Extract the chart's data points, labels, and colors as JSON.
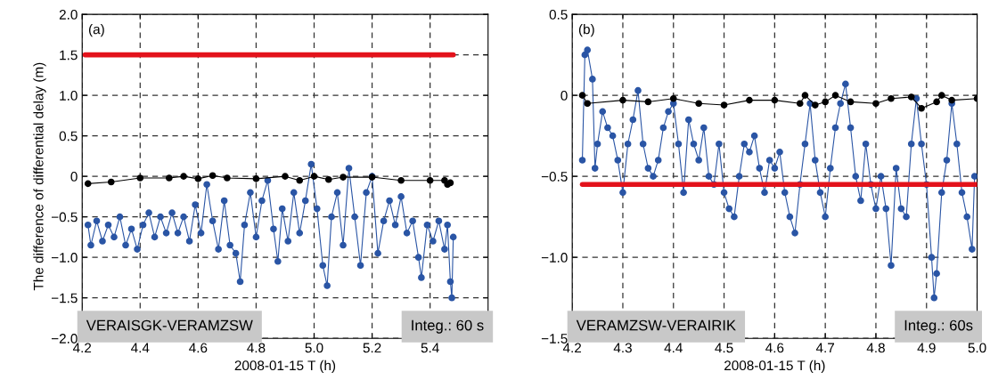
{
  "chart_data": [
    {
      "type": "line",
      "xlabel": "2008-01-15 T (h)",
      "ylabel": "The difference of differential delay (m)",
      "annotations": [
        "(a)",
        "VERAISGK-VERAMZSW",
        "Integ.: 60 s"
      ],
      "xlim": [
        4.2,
        5.6
      ],
      "xticks": [
        4.2,
        4.4,
        4.6,
        4.8,
        {
          "value": 5.0,
          "label": "5.0"
        },
        5.2,
        5.4
      ],
      "ylim": [
        -2.0,
        2.0
      ],
      "yticks": [
        {
          "value": -2.0,
          "label": "−2.0"
        },
        {
          "value": -1.5,
          "label": "−1.5"
        },
        {
          "value": -1.0,
          "label": "−1.0"
        },
        {
          "value": -0.5,
          "label": "−0.5"
        },
        0,
        0.5,
        {
          "value": 1.0,
          "label": "1.0"
        },
        1.5,
        {
          "value": 2.0,
          "label": "2.0"
        }
      ],
      "grid": true,
      "line_style": "solid",
      "series": [
        {
          "color": "#2a55a5",
          "marker": "circle",
          "x": [
            4.22,
            4.23,
            4.25,
            4.27,
            4.29,
            4.31,
            4.33,
            4.35,
            4.37,
            4.39,
            4.41,
            4.43,
            4.45,
            4.47,
            4.49,
            4.51,
            4.53,
            4.55,
            4.57,
            4.59,
            4.61,
            4.63,
            4.65,
            4.67,
            4.69,
            4.71,
            4.73,
            4.745,
            4.76,
            4.78,
            4.8,
            4.82,
            4.84,
            4.86,
            4.875,
            4.89,
            4.91,
            4.93,
            4.95,
            4.97,
            4.99,
            5.01,
            5.03,
            5.045,
            5.06,
            5.08,
            5.1,
            5.12,
            5.14,
            5.16,
            5.18,
            5.2,
            5.22,
            5.24,
            5.26,
            5.28,
            5.3,
            5.32,
            5.34,
            5.36,
            5.37,
            5.39,
            5.41,
            5.43,
            5.45,
            5.46,
            5.47,
            5.475,
            5.48
          ],
          "values": [
            -0.6,
            -0.85,
            -0.55,
            -0.8,
            -0.6,
            -0.75,
            -0.5,
            -0.85,
            -0.65,
            -0.9,
            -0.6,
            -0.45,
            -0.75,
            -0.5,
            -0.7,
            -0.45,
            -0.7,
            -0.5,
            -0.8,
            -0.35,
            -0.7,
            -0.1,
            -0.55,
            -0.9,
            -0.3,
            -0.85,
            -0.95,
            -1.3,
            -0.6,
            -0.2,
            -0.75,
            -0.3,
            -0.05,
            -0.65,
            -1.05,
            -0.4,
            -0.8,
            -0.2,
            -0.7,
            -0.3,
            0.15,
            -0.4,
            -1.1,
            -1.35,
            -0.5,
            -0.2,
            -0.85,
            0.1,
            -0.5,
            -1.1,
            -0.2,
            0.0,
            -0.95,
            -0.55,
            -0.3,
            -0.6,
            -0.25,
            -0.7,
            -0.55,
            -1.0,
            -1.25,
            -0.6,
            -0.8,
            -0.55,
            -0.9,
            -0.6,
            -1.3,
            -1.5,
            -0.75
          ]
        },
        {
          "color": "#000000",
          "marker": "circle",
          "x": [
            4.22,
            4.3,
            4.4,
            4.5,
            4.55,
            4.6,
            4.65,
            4.7,
            4.8,
            4.9,
            4.95,
            5.0,
            5.05,
            5.1,
            5.2,
            5.3,
            5.4,
            5.45,
            5.46,
            5.47
          ],
          "values": [
            -0.09,
            -0.07,
            -0.02,
            -0.02,
            0.0,
            -0.03,
            0.01,
            -0.02,
            -0.03,
            0.0,
            -0.05,
            0.0,
            -0.04,
            -0.01,
            -0.01,
            -0.05,
            -0.05,
            -0.05,
            -0.1,
            -0.08
          ]
        },
        {
          "color": "#e3121b",
          "marker": "none",
          "x": [
            4.21,
            5.48
          ],
          "values": [
            1.5,
            1.5
          ]
        }
      ]
    },
    {
      "type": "line",
      "xlabel": "2008-01-15 T (h)",
      "annotations": [
        "(b)",
        "VERAMZSW-VERAIRIK",
        "Integ.: 60s"
      ],
      "xlim": [
        4.2,
        5.0
      ],
      "xticks": [
        4.2,
        4.3,
        4.4,
        4.5,
        4.6,
        4.7,
        4.8,
        4.9,
        {
          "value": 5.0,
          "label": "5.0"
        }
      ],
      "ylim": [
        -1.5,
        0.5
      ],
      "yticks": [
        {
          "value": -1.5,
          "label": "−1.5"
        },
        {
          "value": -1.0,
          "label": "−1.0"
        },
        {
          "value": -0.5,
          "label": "−0.5"
        },
        0,
        0.5
      ],
      "grid": true,
      "line_style": "solid",
      "series": [
        {
          "color": "#2a55a5",
          "marker": "circle",
          "x": [
            4.22,
            4.225,
            4.23,
            4.24,
            4.245,
            4.25,
            4.26,
            4.27,
            4.28,
            4.29,
            4.3,
            4.31,
            4.32,
            4.33,
            4.34,
            4.35,
            4.36,
            4.37,
            4.38,
            4.39,
            4.4,
            4.41,
            4.42,
            4.43,
            4.44,
            4.45,
            4.46,
            4.47,
            4.48,
            4.49,
            4.5,
            4.51,
            4.52,
            4.53,
            4.54,
            4.55,
            4.56,
            4.57,
            4.58,
            4.59,
            4.6,
            4.61,
            4.62,
            4.63,
            4.64,
            4.65,
            4.66,
            4.67,
            4.68,
            4.69,
            4.7,
            4.71,
            4.72,
            4.73,
            4.74,
            4.75,
            4.76,
            4.77,
            4.78,
            4.79,
            4.8,
            4.81,
            4.82,
            4.83,
            4.84,
            4.85,
            4.86,
            4.87,
            4.88,
            4.89,
            4.9,
            4.91,
            4.915,
            4.92,
            4.93,
            4.94,
            4.95,
            4.96,
            4.97,
            4.98,
            4.99,
            4.995
          ],
          "values": [
            -0.4,
            0.25,
            0.28,
            0.1,
            -0.45,
            -0.3,
            -0.1,
            -0.2,
            -0.25,
            -0.4,
            -0.6,
            -0.3,
            -0.15,
            0.03,
            -0.3,
            -0.45,
            -0.5,
            -0.4,
            -0.2,
            -0.1,
            -0.05,
            -0.3,
            -0.6,
            -0.15,
            -0.3,
            -0.4,
            -0.2,
            -0.5,
            -0.55,
            -0.3,
            -0.6,
            -0.7,
            -0.75,
            -0.5,
            -0.3,
            -0.35,
            -0.25,
            -0.45,
            -0.6,
            -0.4,
            -0.45,
            -0.35,
            -0.6,
            -0.75,
            -0.85,
            -0.55,
            -0.3,
            -0.05,
            -0.4,
            -0.6,
            -0.75,
            -0.45,
            -0.2,
            -0.05,
            0.07,
            -0.2,
            -0.5,
            -0.65,
            -0.3,
            -0.55,
            -0.7,
            -0.5,
            -0.7,
            -1.05,
            -0.45,
            -0.7,
            -0.75,
            -0.3,
            -0.02,
            -0.3,
            -0.55,
            -1.0,
            -1.25,
            -1.1,
            -0.6,
            -0.4,
            -0.05,
            -0.3,
            -0.6,
            -0.75,
            -0.95,
            -0.5
          ]
        },
        {
          "color": "#000000",
          "marker": "circle",
          "x": [
            4.22,
            4.23,
            4.3,
            4.35,
            4.4,
            4.45,
            4.5,
            4.55,
            4.6,
            4.65,
            4.66,
            4.68,
            4.7,
            4.72,
            4.75,
            4.8,
            4.83,
            4.87,
            4.89,
            4.92,
            4.93,
            4.95,
            5.0
          ],
          "values": [
            0.0,
            -0.05,
            -0.03,
            -0.04,
            -0.02,
            -0.05,
            -0.06,
            -0.03,
            -0.03,
            -0.05,
            0.0,
            -0.06,
            -0.04,
            0.0,
            -0.04,
            -0.05,
            -0.02,
            -0.01,
            -0.08,
            -0.04,
            0.0,
            -0.03,
            -0.02
          ]
        },
        {
          "color": "#e3121b",
          "marker": "none",
          "x": [
            4.22,
            5.0
          ],
          "values": [
            -0.55,
            -0.55
          ]
        }
      ]
    }
  ]
}
